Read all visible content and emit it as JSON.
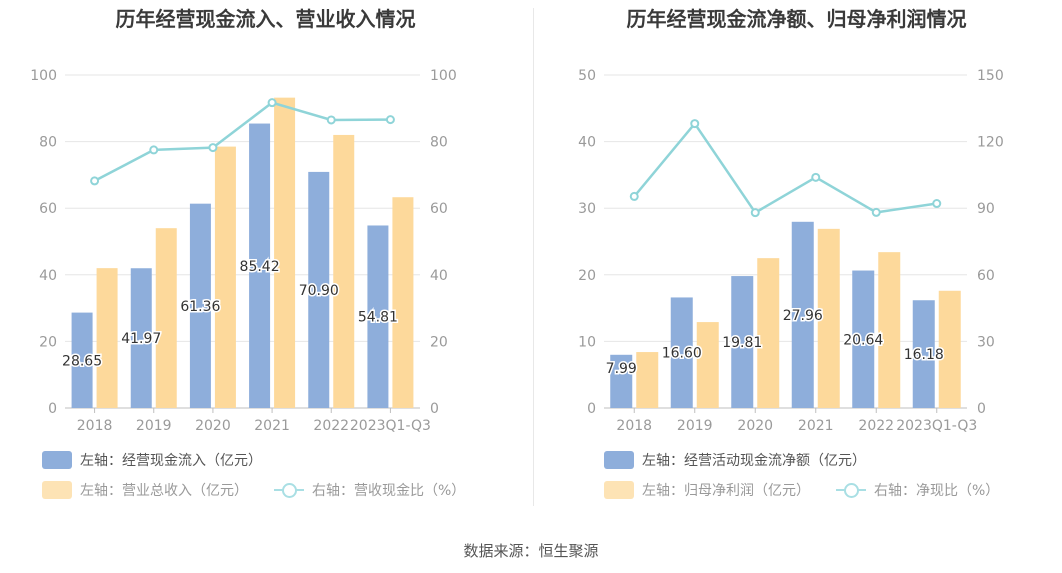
{
  "source_text": "数据来源：恒生聚源",
  "colors": {
    "blue": "#8eaedb",
    "orange": "#fdd99b",
    "line": "#8fd4d8",
    "grid": "#e6e6e6",
    "axis_text": "#9a9a9a"
  },
  "chart_data": [
    {
      "type": "bar",
      "title": "历年经营现金流入、营业收入情况",
      "categories": [
        "2018",
        "2019",
        "2020",
        "2021",
        "2022",
        "2023Q1-Q3"
      ],
      "left_axis": {
        "min": 0,
        "max": 100,
        "ticks": [
          0,
          20,
          40,
          60,
          80,
          100
        ]
      },
      "right_axis": {
        "min": 0,
        "max": 100,
        "ticks": [
          0,
          20,
          40,
          60,
          80,
          100
        ]
      },
      "series": [
        {
          "name": "左轴：经营现金流入（亿元）",
          "axis": "left",
          "type": "bar",
          "color": "#8eaedb",
          "values": [
            28.65,
            41.97,
            61.36,
            85.42,
            70.9,
            54.81
          ],
          "labels": [
            "28.65",
            "41.97",
            "61.36",
            "85.42",
            "70.90",
            "54.81"
          ]
        },
        {
          "name": "左轴：营业总收入（亿元）",
          "axis": "left",
          "type": "bar",
          "color": "#fdd99b",
          "values": [
            42.0,
            54.0,
            78.5,
            93.2,
            82.0,
            63.3
          ]
        },
        {
          "name": "右轴：营收现金比（%）",
          "axis": "right",
          "type": "line",
          "color": "#8fd4d8",
          "values": [
            68.2,
            77.5,
            78.2,
            91.7,
            86.5,
            86.6
          ]
        }
      ],
      "legend": [
        {
          "label": "左轴：经营现金流入（亿元）",
          "kind": "bar",
          "color": "#8eaedb"
        },
        {
          "label": "左轴：营业总收入（亿元）",
          "kind": "bar",
          "color": "#fdd99b"
        },
        {
          "label": "右轴：营收现金比（%）",
          "kind": "line",
          "color": "#8fd4d8"
        }
      ],
      "grid": true
    },
    {
      "type": "bar",
      "title": "历年经营现金流净额、归母净利润情况",
      "categories": [
        "2018",
        "2019",
        "2020",
        "2021",
        "2022",
        "2023Q1-Q3"
      ],
      "left_axis": {
        "min": 0,
        "max": 50,
        "ticks": [
          0,
          10,
          20,
          30,
          40,
          50
        ]
      },
      "right_axis": {
        "min": 0,
        "max": 150,
        "ticks": [
          0,
          30,
          60,
          90,
          120,
          150
        ]
      },
      "series": [
        {
          "name": "左轴：经营活动现金流净额（亿元）",
          "axis": "left",
          "type": "bar",
          "color": "#8eaedb",
          "values": [
            7.99,
            16.6,
            19.81,
            27.96,
            20.64,
            16.18
          ],
          "labels": [
            "7.99",
            "16.60",
            "19.81",
            "27.96",
            "20.64",
            "16.18"
          ]
        },
        {
          "name": "左轴：归母净利润（亿元）",
          "axis": "left",
          "type": "bar",
          "color": "#fdd99b",
          "values": [
            8.4,
            12.9,
            22.5,
            26.9,
            23.4,
            17.6
          ]
        },
        {
          "name": "右轴：净现比（%）",
          "axis": "right",
          "type": "line",
          "color": "#8fd4d8",
          "values": [
            95.3,
            128.1,
            88.0,
            103.9,
            88.1,
            92.1
          ]
        }
      ],
      "legend": [
        {
          "label": "左轴：经营活动现金流净额（亿元）",
          "kind": "bar",
          "color": "#8eaedb"
        },
        {
          "label": "左轴：归母净利润（亿元）",
          "kind": "bar",
          "color": "#fdd99b"
        },
        {
          "label": "右轴：净现比（%）",
          "kind": "line",
          "color": "#8fd4d8"
        }
      ],
      "grid": true
    }
  ]
}
